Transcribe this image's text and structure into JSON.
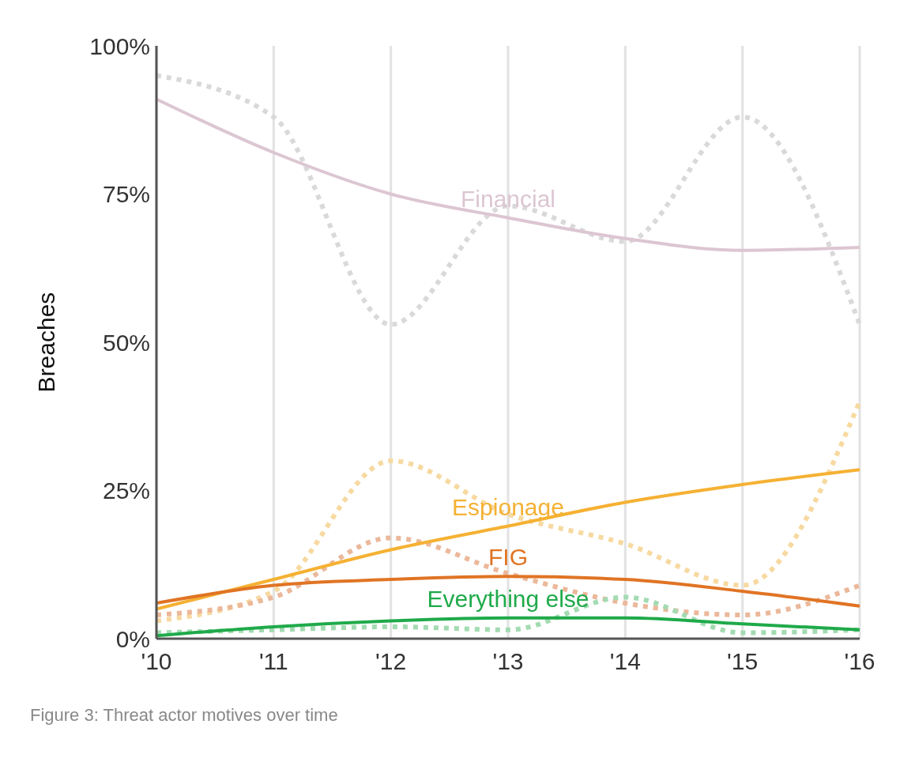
{
  "chart_data": {
    "type": "line",
    "ylabel": "Breaches",
    "annotations": [
      "Figure 3: Threat actor motives over time"
    ],
    "categories": [
      "'10",
      "'11",
      "'12",
      "'13",
      "'14",
      "'15",
      "'16"
    ],
    "ylim": [
      0,
      100
    ],
    "yticks": [
      {
        "value": 0,
        "label": "0%"
      },
      {
        "value": 25,
        "label": "25%"
      },
      {
        "value": 50,
        "label": "50%"
      },
      {
        "value": 75,
        "label": "75%"
      },
      {
        "value": 100,
        "label": "100%"
      }
    ],
    "grid": "x",
    "legend": false,
    "marker": "none",
    "series": [
      {
        "color": "#d9d9d9",
        "line_style": "dotted",
        "values": [
          95,
          88,
          53,
          73,
          67,
          88,
          53
        ]
      },
      {
        "color": "#f7d9a0",
        "line_style": "dotted",
        "values": [
          3,
          8,
          30,
          21,
          16,
          9,
          40
        ]
      },
      {
        "color": "#ebb89a",
        "line_style": "dotted",
        "values": [
          4,
          7,
          17,
          11,
          6,
          4,
          9
        ]
      },
      {
        "color": "#a3dbb2",
        "line_style": "dotted",
        "values": [
          1,
          1.5,
          2,
          1.5,
          7,
          1,
          1.5
        ]
      },
      {
        "name": "Financial",
        "color": "#dcc6d2",
        "line_style": "solid",
        "values": [
          91,
          82,
          75,
          71,
          67.5,
          65.5,
          66
        ]
      },
      {
        "name": "Espionage",
        "color": "#f5b133",
        "line_style": "solid",
        "values": [
          5,
          10,
          15,
          19,
          23,
          26,
          28.5
        ]
      },
      {
        "name": "FIG",
        "color": "#e07424",
        "line_style": "solid",
        "values": [
          6,
          9,
          10,
          10.5,
          10,
          8,
          5.5
        ]
      },
      {
        "name": "Everything else",
        "color": "#1faa4a",
        "line_style": "solid",
        "values": [
          0.5,
          2,
          3,
          3.5,
          3.5,
          2.5,
          1.5
        ]
      }
    ]
  }
}
